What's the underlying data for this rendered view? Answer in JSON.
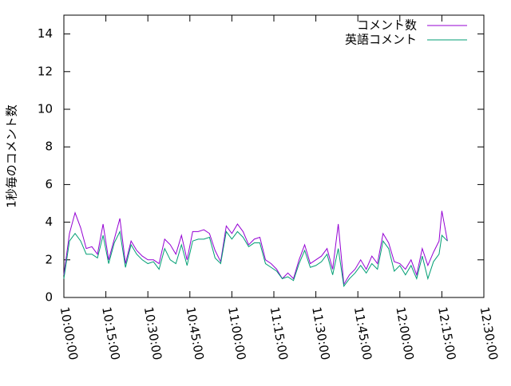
{
  "chart_data": {
    "type": "line",
    "ylabel": "1秒毎のコメント数",
    "x": [
      "10:00:00",
      "10:02:00",
      "10:04:00",
      "10:06:00",
      "10:08:00",
      "10:10:00",
      "10:12:00",
      "10:14:00",
      "10:16:00",
      "10:18:00",
      "10:20:00",
      "10:22:00",
      "10:24:00",
      "10:26:00",
      "10:28:00",
      "10:30:00",
      "10:32:00",
      "10:34:00",
      "10:36:00",
      "10:38:00",
      "10:40:00",
      "10:42:00",
      "10:44:00",
      "10:46:00",
      "10:48:00",
      "10:50:00",
      "10:52:00",
      "10:54:00",
      "10:56:00",
      "10:58:00",
      "11:00:00",
      "11:02:00",
      "11:04:00",
      "11:06:00",
      "11:08:00",
      "11:10:00",
      "11:12:00",
      "11:14:00",
      "11:16:00",
      "11:18:00",
      "11:20:00",
      "11:22:00",
      "11:24:00",
      "11:26:00",
      "11:28:00",
      "11:30:00",
      "11:32:00",
      "11:34:00",
      "11:36:00",
      "11:38:00",
      "11:40:00",
      "11:42:00",
      "11:44:00",
      "11:46:00",
      "11:48:00",
      "11:50:00",
      "11:52:00",
      "11:54:00",
      "11:56:00",
      "11:58:00",
      "12:00:00",
      "12:02:00",
      "12:04:00",
      "12:06:00",
      "12:08:00",
      "12:10:00",
      "12:12:00",
      "12:14:00",
      "12:15:00",
      "12:17:00"
    ],
    "series": [
      {
        "name": "コメント数",
        "color": "#9400d3",
        "values": [
          1.2,
          3.4,
          4.5,
          3.7,
          2.6,
          2.7,
          2.3,
          3.9,
          2.0,
          3.1,
          4.2,
          1.8,
          3.0,
          2.5,
          2.2,
          2.0,
          2.0,
          1.8,
          3.1,
          2.8,
          2.3,
          3.3,
          2.0,
          3.5,
          3.5,
          3.6,
          3.4,
          2.5,
          1.9,
          3.8,
          3.4,
          3.9,
          3.5,
          2.8,
          3.1,
          3.2,
          2.0,
          1.8,
          1.5,
          1.0,
          1.3,
          1.0,
          2.0,
          2.8,
          1.8,
          2.0,
          2.2,
          2.6,
          1.5,
          3.9,
          0.7,
          1.2,
          1.5,
          2.0,
          1.5,
          2.2,
          1.8,
          3.4,
          2.9,
          1.9,
          1.8,
          1.5,
          2.0,
          1.2,
          2.6,
          1.7,
          2.4,
          3.0,
          4.6,
          3.0
        ]
      },
      {
        "name": "英語コメント",
        "color": "#009e73",
        "values": [
          1.0,
          3.0,
          3.4,
          3.0,
          2.3,
          2.3,
          2.1,
          3.3,
          1.8,
          2.9,
          3.5,
          1.6,
          2.8,
          2.3,
          2.0,
          1.8,
          1.9,
          1.5,
          2.6,
          2.0,
          1.8,
          2.8,
          1.7,
          3.0,
          3.1,
          3.1,
          3.2,
          2.1,
          1.8,
          3.5,
          3.1,
          3.5,
          3.2,
          2.7,
          2.9,
          2.9,
          1.8,
          1.6,
          1.4,
          1.0,
          1.1,
          0.9,
          1.8,
          2.5,
          1.6,
          1.7,
          1.9,
          2.3,
          1.2,
          2.6,
          0.6,
          1.0,
          1.3,
          1.7,
          1.3,
          1.8,
          1.5,
          3.0,
          2.6,
          1.4,
          1.7,
          1.2,
          1.7,
          1.0,
          2.2,
          1.0,
          1.9,
          2.3,
          3.3,
          3.0
        ]
      }
    ],
    "xlim": [
      "10:00:00",
      "12:30:00"
    ],
    "xticks": [
      "10:00:00",
      "10:15:00",
      "10:30:00",
      "10:45:00",
      "11:00:00",
      "11:15:00",
      "11:30:00",
      "11:45:00",
      "12:00:00",
      "12:15:00",
      "12:30:00"
    ],
    "ylim": [
      0,
      15
    ],
    "yticks": [
      0,
      2,
      4,
      6,
      8,
      10,
      12,
      14
    ],
    "legend": "top-right"
  }
}
